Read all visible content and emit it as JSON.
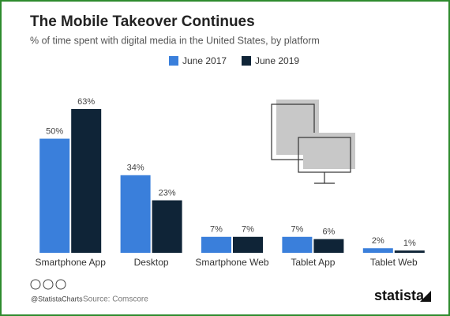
{
  "chart_data": {
    "type": "bar",
    "title": "The Mobile Takeover Continues",
    "subtitle": "% of time spent with digital media in the United States, by platform",
    "categories": [
      "Smartphone App",
      "Desktop",
      "Smartphone Web",
      "Tablet App",
      "Tablet Web"
    ],
    "series": [
      {
        "name": "June 2017",
        "color": "#3a7fdb",
        "values": [
          50,
          34,
          7,
          7,
          2
        ],
        "value_labels": [
          "50%",
          "34%",
          "7%",
          "7%",
          "2%"
        ]
      },
      {
        "name": "June 2019",
        "color": "#0f2437",
        "values": [
          63,
          23,
          7,
          6,
          1
        ],
        "value_labels": [
          "63%",
          "23%",
          "7%",
          "6%",
          "1%"
        ]
      }
    ],
    "legend": "top",
    "source": "Source: Comscore",
    "handle": "@StatistaCharts",
    "brand": "statista"
  }
}
